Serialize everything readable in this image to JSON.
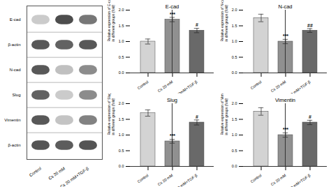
{
  "chart_data": [
    {
      "type": "heatmap",
      "x": [
        "Control",
        "Cs 20 mM",
        "Cs 20 mM+TGF-β"
      ],
      "y": [
        "E-cad",
        "β-actin",
        "N-cad",
        "Slug",
        "Vimentin",
        "β-actin"
      ],
      "values": [
        [
          0.25,
          0.85,
          0.65
        ],
        [
          0.8,
          0.75,
          0.8
        ],
        [
          0.8,
          0.3,
          0.55
        ],
        [
          0.75,
          0.25,
          0.55
        ],
        [
          0.8,
          0.28,
          0.6
        ],
        [
          0.82,
          0.78,
          0.82
        ]
      ]
    },
    {
      "type": "bar",
      "title": "E-cad",
      "ylabel": "Relative expression of E-cad\nin different groups (fold)",
      "categories": [
        "Control",
        "Cs 20 mM",
        "Cs 20mM+TGF-β"
      ],
      "values": [
        1.0,
        1.7,
        1.35
      ],
      "errors": [
        0.08,
        0.07,
        0.07
      ],
      "colors": [
        "#d3d3d3",
        "#909090",
        "#696969"
      ],
      "ylim": [
        0,
        2.0
      ],
      "yticks": [
        {
          "value": 0,
          "label": "0.0"
        },
        0.5,
        {
          "value": 1,
          "label": "1.0"
        },
        1.5,
        {
          "value": 2,
          "label": "2.0"
        }
      ],
      "annotations": [
        {
          "x": "Cs 20 mM",
          "y": 1.82,
          "text": "***"
        },
        {
          "x": "Cs 20mM+TGF-β",
          "y": 1.47,
          "text": "#"
        }
      ]
    },
    {
      "type": "bar",
      "title": "N-cad",
      "ylabel": "Relative expression of N-cad\nin different groups (fold)",
      "categories": [
        "Control",
        "Cs 20 mM",
        "Cs 20 mM+TGF-β"
      ],
      "values": [
        1.75,
        1.0,
        1.35
      ],
      "errors": [
        0.12,
        0.07,
        0.06
      ],
      "colors": [
        "#d3d3d3",
        "#909090",
        "#696969"
      ],
      "ylim": [
        0,
        2.0
      ],
      "yticks": [
        {
          "value": 0,
          "label": "0.0"
        },
        0.5,
        {
          "value": 1,
          "label": "1.0"
        },
        1.5,
        {
          "value": 2,
          "label": "2.0"
        }
      ],
      "annotations": [
        {
          "x": "Cs 20 mM",
          "y": 1.12,
          "text": "***"
        },
        {
          "x": "Cs 20 mM+TGF-β",
          "y": 1.46,
          "text": "##"
        }
      ]
    },
    {
      "type": "bar",
      "title": "Slug",
      "ylabel": "Relative expression of Slug\nin different groups (fold)",
      "categories": [
        "Control",
        "Cs 20 mM",
        "Cs 20 mM+TGF-β"
      ],
      "values": [
        1.7,
        0.8,
        1.4
      ],
      "errors": [
        0.1,
        0.06,
        0.08
      ],
      "colors": [
        "#d3d3d3",
        "#909090",
        "#696969"
      ],
      "ylim": [
        0,
        2.0
      ],
      "yticks": [
        {
          "value": 0,
          "label": "0.0"
        },
        0.5,
        {
          "value": 1,
          "label": "1.0"
        },
        1.5,
        {
          "value": 2,
          "label": "2.0"
        }
      ],
      "annotations": [
        {
          "x": "Cs 20 mM",
          "y": 0.92,
          "text": "***"
        },
        {
          "x": "Cs 20 mM+TGF-β",
          "y": 1.52,
          "text": "#"
        }
      ]
    },
    {
      "type": "bar",
      "title": "Vimentin",
      "ylabel": "Relative expression of Vimentin\nin different groups (fold)",
      "categories": [
        "Control",
        "Cs 20 mM",
        "Cs 20 mM+TGF-β"
      ],
      "values": [
        1.75,
        1.0,
        1.4
      ],
      "errors": [
        0.12,
        0.07,
        0.07
      ],
      "colors": [
        "#d3d3d3",
        "#909090",
        "#696969"
      ],
      "ylim": [
        0,
        2.0
      ],
      "yticks": [
        {
          "value": 0,
          "label": "0.0"
        },
        0.5,
        {
          "value": 1,
          "label": "1.0"
        },
        1.5,
        {
          "value": 2,
          "label": "2.0"
        }
      ],
      "annotations": [
        {
          "x": "Cs 20 mM",
          "y": 1.12,
          "text": "***"
        },
        {
          "x": "Cs 20 mM+TGF-β",
          "y": 1.52,
          "text": "#"
        }
      ]
    }
  ]
}
